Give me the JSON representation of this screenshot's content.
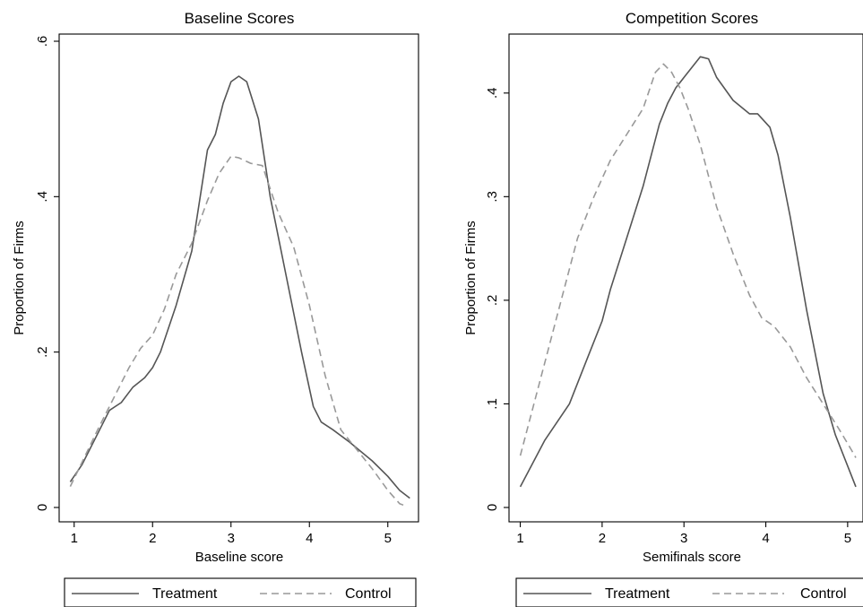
{
  "chart_data": [
    {
      "type": "line",
      "title": "Baseline Scores",
      "xlabel": "Baseline score",
      "ylabel": "Proportion of Firms",
      "xlim": [
        0.9,
        5.3
      ],
      "ylim": [
        0,
        0.6
      ],
      "xticks": [
        1,
        2,
        3,
        4,
        5
      ],
      "xtick_labels": [
        "1",
        "2",
        "3",
        "4",
        "5"
      ],
      "yticks": [
        0,
        0.2,
        0.4,
        0.6
      ],
      "ytick_labels": [
        "0",
        ".2",
        ".4",
        ".6"
      ],
      "grid": false,
      "legend": "bottom",
      "series": [
        {
          "name": "Treatment",
          "style": "solid",
          "color": "#555555",
          "x": [
            0.95,
            1.1,
            1.3,
            1.45,
            1.6,
            1.75,
            1.9,
            2.0,
            2.1,
            2.3,
            2.5,
            2.7,
            2.8,
            2.9,
            3.0,
            3.1,
            3.2,
            3.35,
            3.5,
            3.7,
            3.9,
            4.05,
            4.15,
            4.3,
            4.5,
            4.8,
            5.0,
            5.15,
            5.28
          ],
          "y": [
            0.033,
            0.055,
            0.095,
            0.125,
            0.135,
            0.155,
            0.167,
            0.18,
            0.2,
            0.26,
            0.33,
            0.46,
            0.48,
            0.52,
            0.548,
            0.555,
            0.548,
            0.5,
            0.4,
            0.3,
            0.2,
            0.13,
            0.11,
            0.1,
            0.085,
            0.06,
            0.04,
            0.022,
            0.012
          ]
        },
        {
          "name": "Control",
          "style": "dashed",
          "color": "#999999",
          "x": [
            0.95,
            1.1,
            1.3,
            1.5,
            1.7,
            1.85,
            2.0,
            2.15,
            2.3,
            2.5,
            2.7,
            2.85,
            3.0,
            3.1,
            3.25,
            3.4,
            3.6,
            3.8,
            4.0,
            4.2,
            4.4,
            4.6,
            4.8,
            5.0,
            5.15,
            5.25
          ],
          "y": [
            0.027,
            0.058,
            0.1,
            0.14,
            0.18,
            0.205,
            0.222,
            0.255,
            0.3,
            0.34,
            0.395,
            0.43,
            0.452,
            0.45,
            0.443,
            0.44,
            0.38,
            0.335,
            0.26,
            0.17,
            0.1,
            0.075,
            0.05,
            0.022,
            0.005,
            0.001
          ]
        }
      ]
    },
    {
      "type": "line",
      "title": "Competition Scores",
      "xlabel": "Semifinals score",
      "ylabel": "Proportion of Firms",
      "xlim": [
        0.95,
        5.1
      ],
      "ylim": [
        0,
        0.45
      ],
      "xticks": [
        1,
        2,
        3,
        4,
        5
      ],
      "xtick_labels": [
        "1",
        "2",
        "3",
        "4",
        "5"
      ],
      "yticks": [
        0,
        0.1,
        0.2,
        0.3,
        0.4
      ],
      "ytick_labels": [
        "0",
        ".1",
        ".2",
        ".3",
        ".4"
      ],
      "grid": false,
      "legend": "bottom",
      "series": [
        {
          "name": "Treatment",
          "style": "solid",
          "color": "#555555",
          "x": [
            1.0,
            1.1,
            1.3,
            1.6,
            1.8,
            2.0,
            2.1,
            2.3,
            2.5,
            2.7,
            2.8,
            2.9,
            3.0,
            3.2,
            3.3,
            3.4,
            3.6,
            3.8,
            3.9,
            4.05,
            4.15,
            4.3,
            4.5,
            4.7,
            4.85,
            5.0,
            5.1
          ],
          "y": [
            0.02,
            0.035,
            0.065,
            0.1,
            0.14,
            0.18,
            0.21,
            0.26,
            0.31,
            0.37,
            0.39,
            0.405,
            0.415,
            0.435,
            0.433,
            0.415,
            0.393,
            0.38,
            0.38,
            0.367,
            0.34,
            0.28,
            0.19,
            0.11,
            0.07,
            0.04,
            0.02
          ]
        },
        {
          "name": "Control",
          "style": "dashed",
          "color": "#999999",
          "x": [
            1.0,
            1.1,
            1.3,
            1.5,
            1.7,
            1.9,
            2.1,
            2.3,
            2.5,
            2.65,
            2.75,
            2.85,
            2.95,
            3.05,
            3.2,
            3.4,
            3.6,
            3.8,
            3.95,
            4.1,
            4.3,
            4.5,
            4.7,
            4.9,
            5.05,
            5.1
          ],
          "y": [
            0.05,
            0.08,
            0.14,
            0.2,
            0.26,
            0.3,
            0.335,
            0.36,
            0.385,
            0.42,
            0.428,
            0.42,
            0.405,
            0.385,
            0.35,
            0.29,
            0.245,
            0.205,
            0.183,
            0.175,
            0.155,
            0.125,
            0.1,
            0.075,
            0.055,
            0.048
          ]
        }
      ]
    }
  ]
}
